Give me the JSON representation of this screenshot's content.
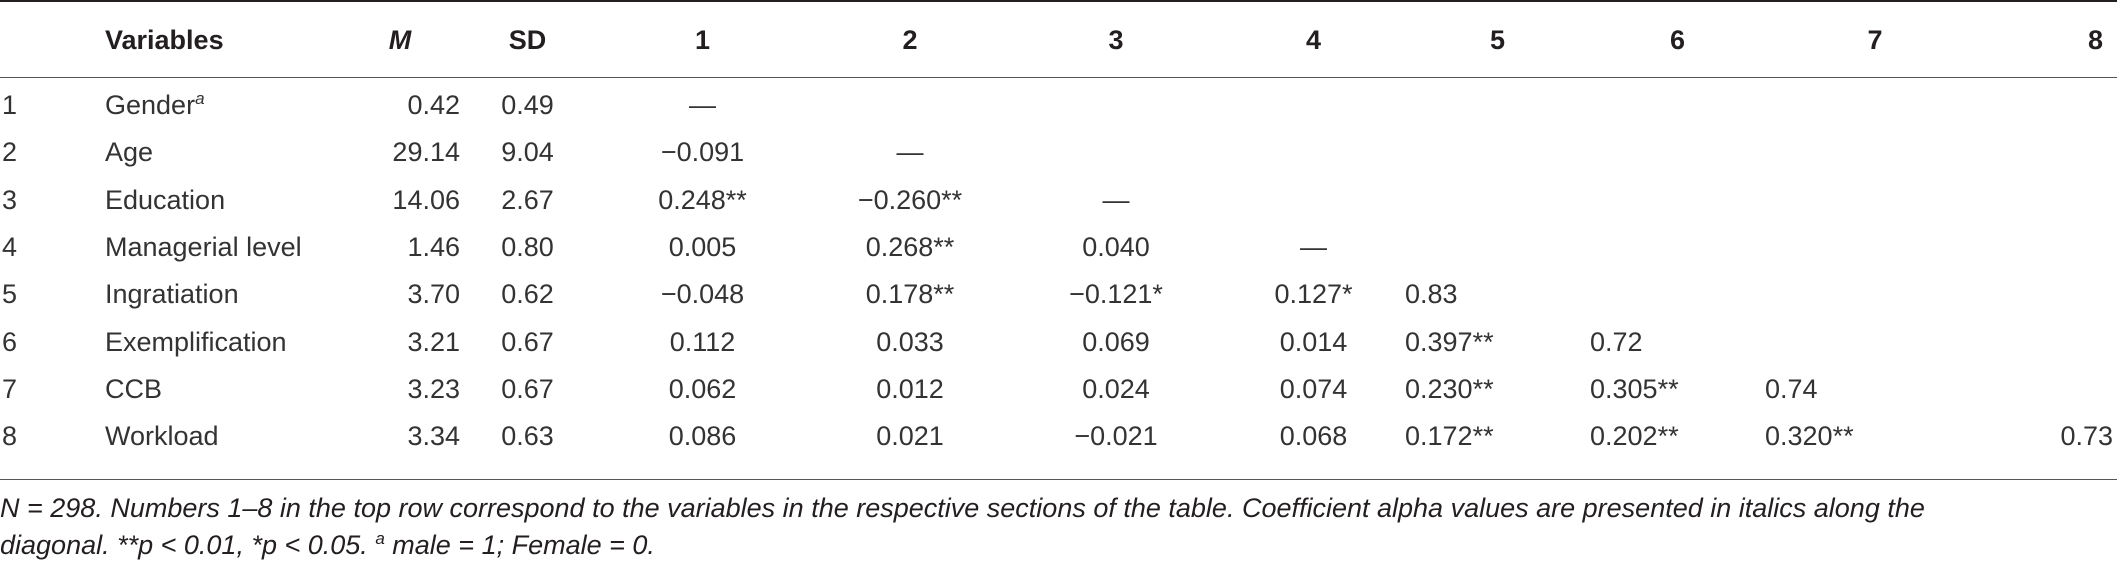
{
  "table": {
    "headers": {
      "num": "",
      "variables": "Variables",
      "m": "M",
      "sd": "SD",
      "c1": "1",
      "c2": "2",
      "c3": "3",
      "c4": "4",
      "c5": "5",
      "c6": "6",
      "c7": "7",
      "c8": "8"
    },
    "rows": [
      {
        "num": "1",
        "variable": "Gender",
        "superscript": "a",
        "m": "0.42",
        "sd": "0.49",
        "c1": "—",
        "c2": "",
        "c3": "",
        "c4": "",
        "c5": "",
        "c6": "",
        "c7": "",
        "c8": ""
      },
      {
        "num": "2",
        "variable": "Age",
        "superscript": "",
        "m": "29.14",
        "sd": "9.04",
        "c1": "−0.091",
        "c2": "—",
        "c3": "",
        "c4": "",
        "c5": "",
        "c6": "",
        "c7": "",
        "c8": ""
      },
      {
        "num": "3",
        "variable": "Education",
        "superscript": "",
        "m": "14.06",
        "sd": "2.67",
        "c1": "0.248**",
        "c2": "−0.260**",
        "c3": "—",
        "c4": "",
        "c5": "",
        "c6": "",
        "c7": "",
        "c8": ""
      },
      {
        "num": "4",
        "variable": "Managerial level",
        "superscript": "",
        "m": "1.46",
        "sd": "0.80",
        "c1": "0.005",
        "c2": "0.268**",
        "c3": "0.040",
        "c4": "—",
        "c5": "",
        "c6": "",
        "c7": "",
        "c8": ""
      },
      {
        "num": "5",
        "variable": "Ingratiation",
        "superscript": "",
        "m": "3.70",
        "sd": "0.62",
        "c1": "−0.048",
        "c2": "0.178**",
        "c3": "−0.121*",
        "c4": "0.127*",
        "c5": "0.83",
        "c6": "",
        "c7": "",
        "c8": ""
      },
      {
        "num": "6",
        "variable": "Exemplification",
        "superscript": "",
        "m": "3.21",
        "sd": "0.67",
        "c1": "0.112",
        "c2": "0.033",
        "c3": "0.069",
        "c4": "0.014",
        "c5": "0.397**",
        "c6": "0.72",
        "c7": "",
        "c8": ""
      },
      {
        "num": "7",
        "variable": "CCB",
        "superscript": "",
        "m": "3.23",
        "sd": "0.67",
        "c1": "0.062",
        "c2": "0.012",
        "c3": "0.024",
        "c4": "0.074",
        "c5": "0.230**",
        "c6": "0.305**",
        "c7": "0.74",
        "c8": ""
      },
      {
        "num": "8",
        "variable": "Workload",
        "superscript": "",
        "m": "3.34",
        "sd": "0.63",
        "c1": "0.086",
        "c2": "0.021",
        "c3": "−0.021",
        "c4": "0.068",
        "c5": "0.172**",
        "c6": "0.202**",
        "c7": "0.320**",
        "c8": "0.73"
      }
    ]
  },
  "note": {
    "line1": "N = 298. Numbers 1–8 in the top row correspond to the variables in the respective sections of the table. Coefficient alpha values are presented in italics along the",
    "line2_before_sup": "diagonal. **p < 0.01, *p < 0.05. ",
    "line2_sup": "a",
    "line2_after_sup": " male = 1; Female = 0."
  }
}
